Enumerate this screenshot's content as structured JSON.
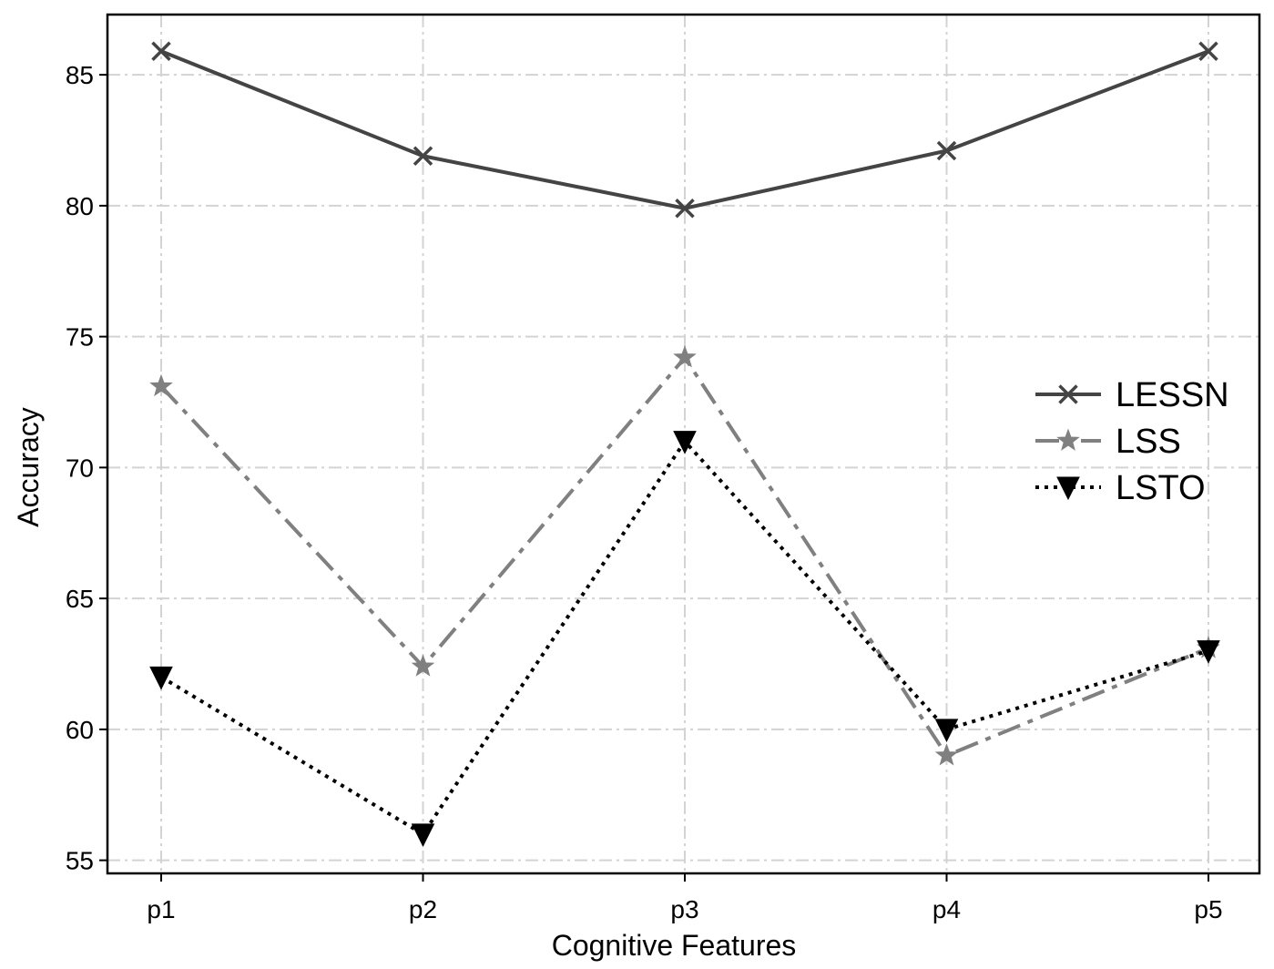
{
  "chart_data": {
    "type": "line",
    "xlabel": "Cognitive Features",
    "ylabel": "Accuracy",
    "categories": [
      "p1",
      "p2",
      "p3",
      "p4",
      "p5"
    ],
    "ylim": [
      54.5,
      87.3
    ],
    "yticks": [
      55,
      60,
      65,
      70,
      75,
      80,
      85
    ],
    "grid": true,
    "legend_position": "right",
    "series": [
      {
        "name": "LESSN",
        "values": [
          85.9,
          81.9,
          79.9,
          82.1,
          85.9
        ],
        "color": "#444444",
        "line_style": "solid",
        "marker": "x"
      },
      {
        "name": "LSS",
        "values": [
          73.1,
          62.4,
          74.2,
          59.0,
          63.1
        ],
        "color": "#808080",
        "line_style": "dashdot",
        "marker": "star"
      },
      {
        "name": "LSTO",
        "values": [
          62.0,
          56.0,
          71.0,
          60.0,
          63.0
        ],
        "color": "#000000",
        "line_style": "dotted",
        "marker": "triangle-down"
      }
    ]
  }
}
